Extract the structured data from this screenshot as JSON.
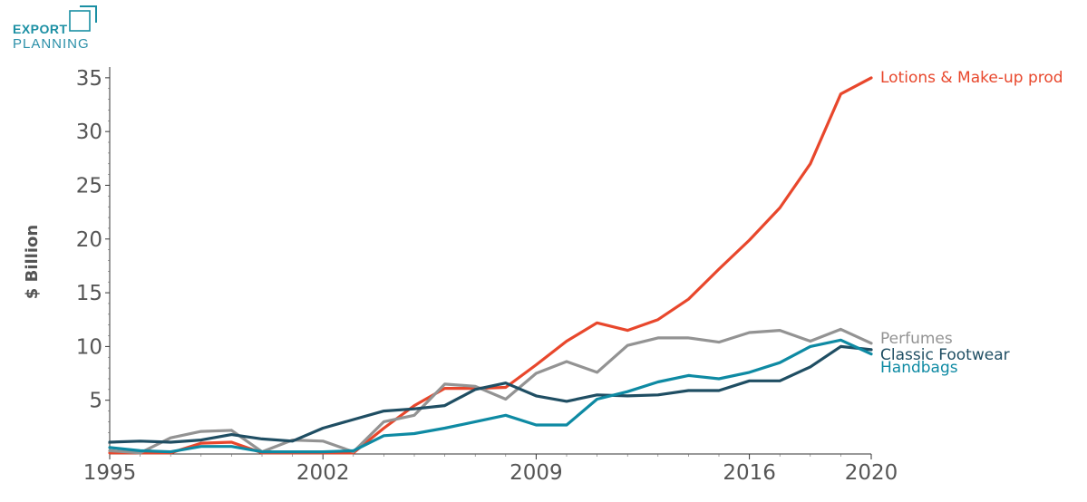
{
  "logo": {
    "line1": "EXPORT",
    "line2": "PLANNING",
    "color_primary": "#1a8fa3",
    "color_secondary": "#2a8fa8"
  },
  "chart_data": {
    "type": "line",
    "title": "",
    "xlabel": "",
    "ylabel": "$ Billion",
    "xlim": [
      1995,
      2020
    ],
    "ylim": [
      0,
      36
    ],
    "x_ticks": [
      1995,
      2002,
      2009,
      2016,
      2020
    ],
    "y_ticks": [
      5,
      10,
      15,
      20,
      25,
      30,
      35
    ],
    "grid": false,
    "legend": "labels at end of lines (right)",
    "x": [
      1995,
      1996,
      1997,
      1998,
      1999,
      2000,
      2001,
      2002,
      2003,
      2004,
      2005,
      2006,
      2007,
      2008,
      2009,
      2010,
      2011,
      2012,
      2013,
      2014,
      2015,
      2016,
      2017,
      2018,
      2019,
      2020
    ],
    "series": [
      {
        "name": "Lotions & Make-up prod",
        "color": "#e8472c",
        "values": [
          0.1,
          0.1,
          0.1,
          1.0,
          1.1,
          0.1,
          0.1,
          0.1,
          0.1,
          2.4,
          4.5,
          6.1,
          6.1,
          6.2,
          8.3,
          10.5,
          12.2,
          11.5,
          12.5,
          14.4,
          17.2,
          19.9,
          22.9,
          27.0,
          33.5,
          35.0
        ]
      },
      {
        "name": "Perfumes",
        "color": "#939393",
        "values": [
          0.3,
          0.1,
          1.5,
          2.1,
          2.2,
          0.2,
          1.3,
          1.2,
          0.2,
          3.0,
          3.6,
          6.5,
          6.3,
          5.1,
          7.5,
          8.6,
          7.6,
          10.1,
          10.8,
          10.8,
          10.4,
          11.3,
          11.5,
          10.5,
          11.6,
          10.3
        ]
      },
      {
        "name": "Classic Footwear",
        "color": "#1f4e63",
        "values": [
          1.1,
          1.2,
          1.1,
          1.3,
          1.8,
          1.4,
          1.2,
          2.4,
          3.2,
          4.0,
          4.2,
          4.5,
          6.0,
          6.6,
          5.4,
          4.9,
          5.5,
          5.4,
          5.5,
          5.9,
          5.9,
          6.8,
          6.8,
          8.1,
          10.0,
          9.7
        ]
      },
      {
        "name": "Handbags",
        "color": "#0e8aa3",
        "values": [
          0.6,
          0.3,
          0.2,
          0.7,
          0.7,
          0.2,
          0.2,
          0.2,
          0.3,
          1.7,
          1.9,
          2.4,
          3.0,
          3.6,
          2.7,
          2.7,
          5.1,
          5.8,
          6.7,
          7.3,
          7.0,
          7.6,
          8.5,
          10.0,
          10.6,
          9.3
        ]
      }
    ]
  }
}
